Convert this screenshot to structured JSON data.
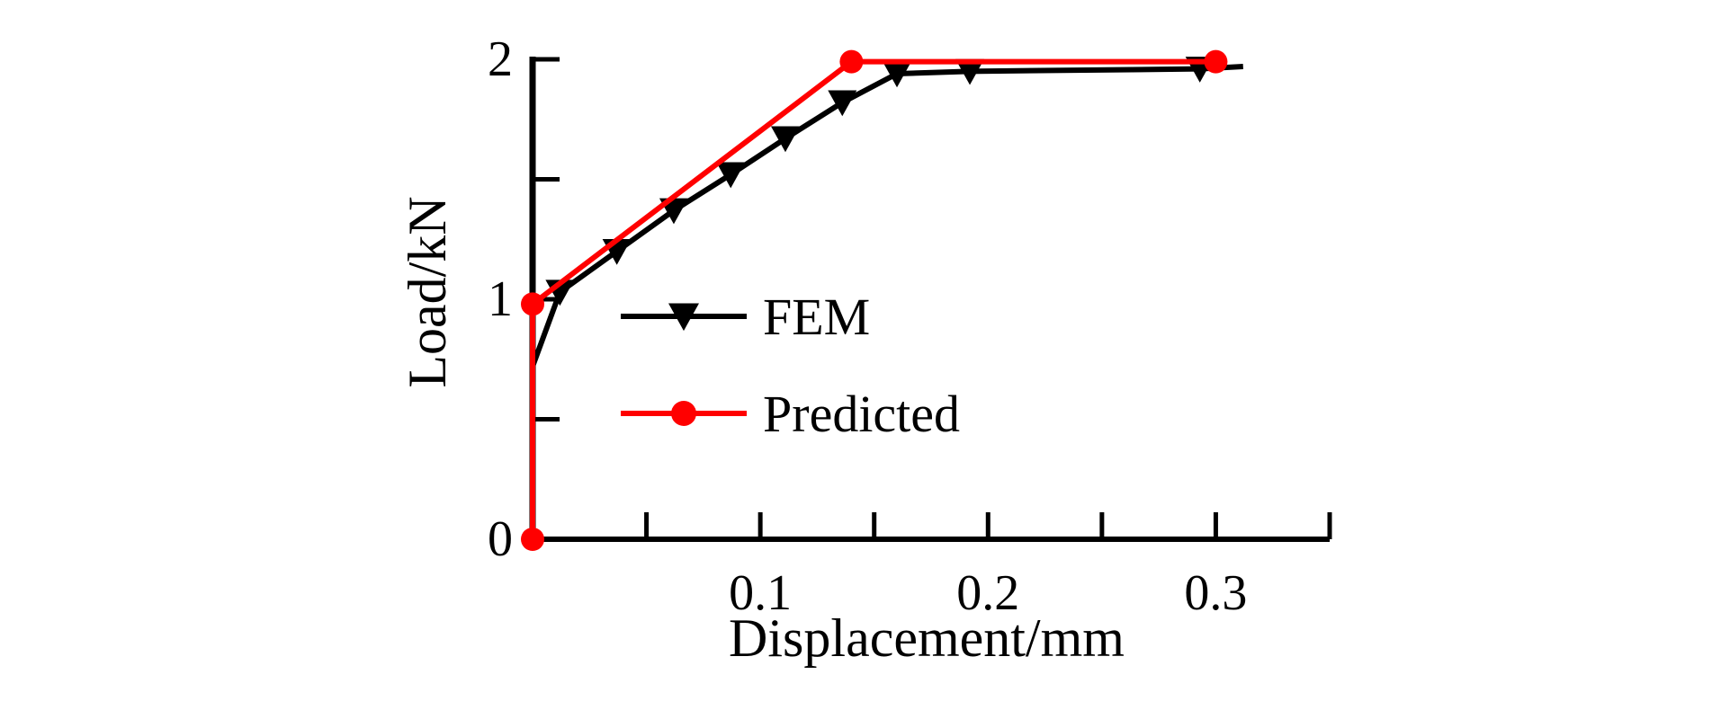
{
  "colors": {
    "fem": "#000000",
    "predicted": "#ff0000",
    "axis": "#000000",
    "background": "#ffffff"
  },
  "chart_data": {
    "type": "line",
    "title": "",
    "xlabel": "Displacement/mm",
    "ylabel": "Load/kN",
    "xlim": [
      0,
      0.35
    ],
    "ylim": [
      0,
      2
    ],
    "x_ticks": [
      0,
      0.05,
      0.1,
      0.15,
      0.2,
      0.25,
      0.3,
      0.35
    ],
    "x_tick_labels": [
      "",
      "",
      "0.1",
      "",
      "0.2",
      "",
      "0.3",
      ""
    ],
    "y_ticks": [
      0,
      0.5,
      1,
      1.5,
      2
    ],
    "y_tick_labels": [
      "0",
      "",
      "1",
      "",
      "2"
    ],
    "grid": false,
    "legend_position": "center",
    "series": [
      {
        "name": "FEM",
        "color": "#000000",
        "marker": "triangle-down",
        "x": [
          0,
          0.0,
          0.012,
          0.037,
          0.062,
          0.087,
          0.111,
          0.136,
          0.16,
          0.192,
          0.293,
          0.312
        ],
        "y": [
          0,
          0.72,
          1.03,
          1.2,
          1.37,
          1.52,
          1.67,
          1.82,
          1.94,
          1.95,
          1.96,
          1.97
        ],
        "markers_at": [
          2,
          3,
          4,
          5,
          6,
          7,
          8,
          9,
          10
        ]
      },
      {
        "name": "Predicted",
        "color": "#ff0000",
        "marker": "circle",
        "x": [
          0,
          0.0,
          0.14,
          0.3
        ],
        "y": [
          0,
          0.98,
          1.99,
          1.99
        ],
        "markers_at": [
          0,
          1,
          2,
          3
        ]
      }
    ]
  }
}
